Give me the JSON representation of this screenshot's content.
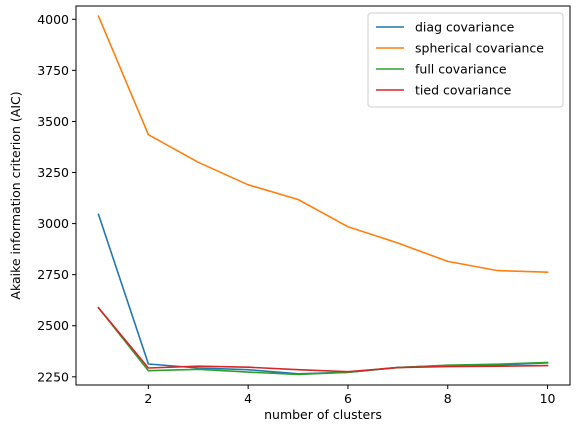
{
  "chart_data": {
    "type": "line",
    "title": "",
    "xlabel": "number of clusters",
    "ylabel": "Akaike information criterion (AIC)",
    "xlim": [
      0.55,
      10.45
    ],
    "ylim": [
      2210,
      4065
    ],
    "xticks": [
      2,
      4,
      6,
      8,
      10
    ],
    "yticks": [
      2250,
      2500,
      2750,
      3000,
      3250,
      3500,
      3750,
      4000
    ],
    "grid": false,
    "legend_position": "top-right",
    "x": [
      1,
      2,
      3,
      4,
      5,
      6,
      7,
      8,
      9,
      10
    ],
    "series": [
      {
        "name": "diag covariance",
        "color": "#1f77b4",
        "values": [
          3045,
          2313,
          2293,
          2285,
          2265,
          2272,
          2296,
          2305,
          2308,
          2318
        ]
      },
      {
        "name": "spherical covariance",
        "color": "#ff7f0e",
        "values": [
          4015,
          3435,
          3300,
          3190,
          3118,
          2985,
          2905,
          2815,
          2770,
          2762
        ]
      },
      {
        "name": "full covariance",
        "color": "#2ca02c",
        "values": [
          2588,
          2280,
          2287,
          2273,
          2262,
          2272,
          2295,
          2307,
          2312,
          2320
        ]
      },
      {
        "name": "tied covariance",
        "color": "#d62728",
        "values": [
          2588,
          2293,
          2302,
          2297,
          2285,
          2275,
          2295,
          2300,
          2302,
          2305
        ]
      }
    ]
  }
}
